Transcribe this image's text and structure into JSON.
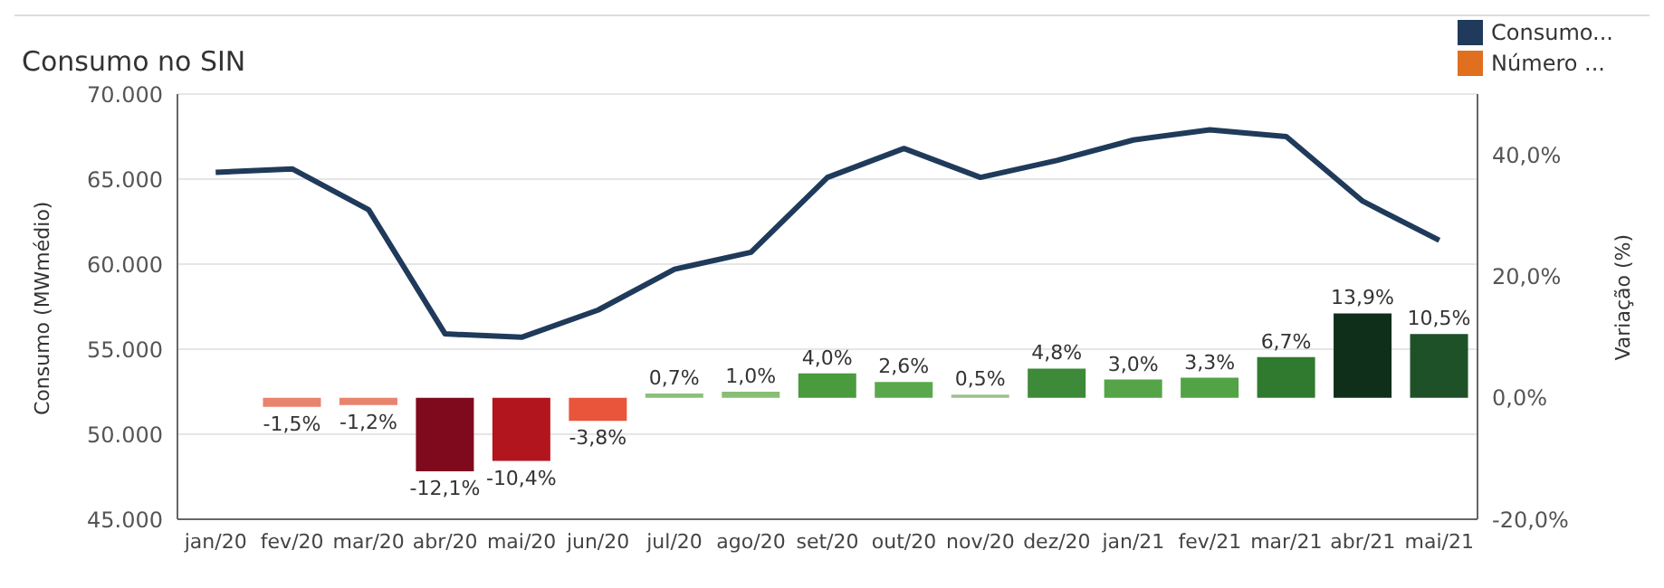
{
  "chart_data": {
    "type": "bar",
    "title": "Consumo no SIN",
    "ylabel": "Consumo (MWmédio)",
    "y2label": "Variação (%)",
    "categories": [
      "jan/20",
      "fev/20",
      "mar/20",
      "abr/20",
      "mai/20",
      "jun/20",
      "jul/20",
      "ago/20",
      "set/20",
      "out/20",
      "nov/20",
      "dez/20",
      "jan/21",
      "fev/21",
      "mar/21",
      "abr/21",
      "mai/21"
    ],
    "series": [
      {
        "name": "Consumo...",
        "type": "line",
        "color": "#1f3a5a",
        "values": [
          65400,
          65600,
          63200,
          55900,
          55700,
          57300,
          59700,
          60700,
          65100,
          66800,
          65100,
          66100,
          67300,
          67900,
          67500,
          63700,
          61400
        ]
      },
      {
        "name": "Número ...",
        "axis": "y2",
        "color": "#e07020",
        "colors": [
          null,
          "#e8836e",
          "#e8836e",
          "#7f0a1e",
          "#b3151f",
          "#e8553a",
          "#8cbf7a",
          "#88bd76",
          "#4a9a3e",
          "#5aa84c",
          "#9cc090",
          "#3d8a38",
          "#55a548",
          "#52a346",
          "#2f7a2f",
          "#0f2f1a",
          "#1e5128"
        ],
        "values": [
          null,
          -1.5,
          -1.2,
          -12.1,
          -10.4,
          -3.8,
          0.7,
          1.0,
          4.0,
          2.6,
          0.5,
          4.8,
          3.0,
          3.3,
          6.7,
          13.9,
          10.5
        ],
        "value_labels": [
          null,
          "-1,5%",
          "-1,2%",
          "-12,1%",
          "-10,4%",
          "-3,8%",
          "0,7%",
          "1,0%",
          "4,0%",
          "2,6%",
          "0,5%",
          "4,8%",
          "3,0%",
          "3,3%",
          "6,7%",
          "13,9%",
          "10,5%"
        ]
      }
    ],
    "ylim": [
      45000,
      70000
    ],
    "yticks": [
      {
        "value": 45000,
        "label": "45.000"
      },
      {
        "value": 50000,
        "label": "50.000"
      },
      {
        "value": 55000,
        "label": "55.000"
      },
      {
        "value": 60000,
        "label": "60.000"
      },
      {
        "value": 65000,
        "label": "65.000"
      },
      {
        "value": 70000,
        "label": "70.000"
      }
    ],
    "y2lim": [
      -20,
      50
    ],
    "y2ticks": [
      {
        "value": -20,
        "label": "-20,0%"
      },
      {
        "value": 0,
        "label": "0,0%"
      },
      {
        "value": 20,
        "label": "20,0%"
      },
      {
        "value": 40,
        "label": "40,0%"
      }
    ],
    "grid": "y",
    "legend": "top right",
    "marker": "none",
    "line_style": "solid"
  }
}
